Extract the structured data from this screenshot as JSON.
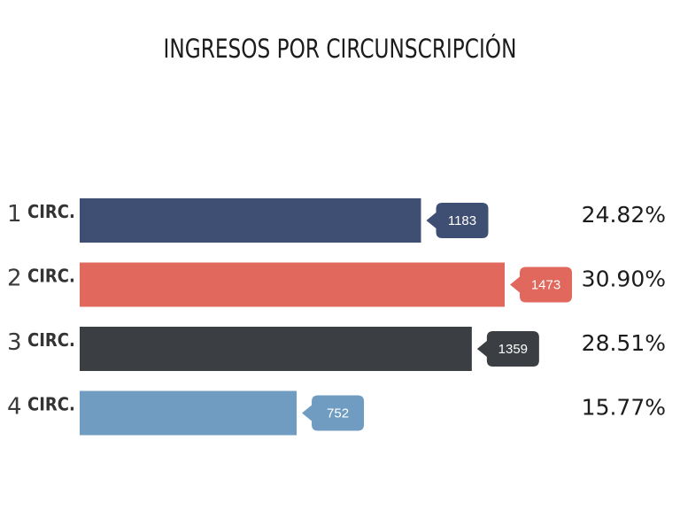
{
  "chart_data": {
    "type": "bar",
    "orientation": "horizontal",
    "title": "INGRESOS POR CIRCUNSCRIPCIÓN",
    "categories": [
      {
        "num": "1",
        "label": "CIRC."
      },
      {
        "num": "2",
        "label": "CIRC."
      },
      {
        "num": "3",
        "label": "CIRC."
      },
      {
        "num": "4",
        "label": "CIRC."
      }
    ],
    "values": [
      1183,
      1473,
      1359,
      752
    ],
    "percentages": [
      "24.82%",
      "30.90%",
      "28.51%",
      "15.77%"
    ],
    "colors": [
      "#3f4f73",
      "#e0685c",
      "#3b3e43",
      "#6f9cc0"
    ],
    "xlim": [
      0,
      1473
    ],
    "grid": false,
    "legend": "none"
  }
}
